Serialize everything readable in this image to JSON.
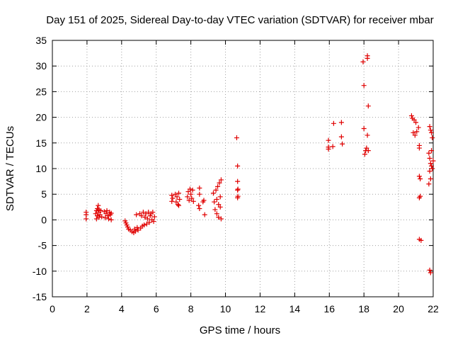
{
  "chart_data": {
    "type": "scatter",
    "title": "Day 151 of 2025, Sidereal Day-to-day VTEC variation (SDTVAR) for receiver mbar",
    "xlabel": "GPS time / hours",
    "ylabel": "SDTVAR / TECUs",
    "xlim": [
      0,
      22
    ],
    "ylim": [
      -15,
      35
    ],
    "xticks": [
      0,
      2,
      4,
      6,
      8,
      10,
      12,
      14,
      16,
      18,
      20,
      22
    ],
    "yticks": [
      -15,
      -10,
      -5,
      0,
      5,
      10,
      15,
      20,
      25,
      30,
      35
    ],
    "grid": true,
    "legend": "none",
    "marker": "+",
    "series": [
      {
        "name": "SDTVAR",
        "color": "#e00000",
        "points": [
          [
            1.95,
            1.5
          ],
          [
            1.95,
            1.0
          ],
          [
            1.95,
            0.2
          ],
          [
            2.5,
            1.2
          ],
          [
            2.55,
            1.8
          ],
          [
            2.55,
            0.2
          ],
          [
            2.6,
            2.2
          ],
          [
            2.6,
            0.8
          ],
          [
            2.65,
            1.5
          ],
          [
            2.65,
            2.8
          ],
          [
            2.7,
            0.5
          ],
          [
            2.7,
            2.0
          ],
          [
            2.75,
            1.0
          ],
          [
            2.8,
            1.8
          ],
          [
            2.85,
            0.6
          ],
          [
            3.0,
            1.6
          ],
          [
            3.05,
            0.4
          ],
          [
            3.1,
            1.2
          ],
          [
            3.15,
            1.8
          ],
          [
            3.2,
            0.8
          ],
          [
            3.25,
            0.2
          ],
          [
            3.3,
            1.5
          ],
          [
            3.35,
            1.0
          ],
          [
            3.4,
            0.0
          ],
          [
            3.4,
            1.3
          ],
          [
            4.2,
            -0.2
          ],
          [
            4.25,
            -0.6
          ],
          [
            4.3,
            -1.0
          ],
          [
            4.35,
            -1.4
          ],
          [
            4.4,
            -1.8
          ],
          [
            4.5,
            -2.0
          ],
          [
            4.6,
            -2.3
          ],
          [
            4.7,
            -2.5
          ],
          [
            4.75,
            -1.8
          ],
          [
            4.8,
            -2.2
          ],
          [
            4.85,
            1.0
          ],
          [
            4.9,
            -1.5
          ],
          [
            4.95,
            -2.0
          ],
          [
            5.05,
            1.2
          ],
          [
            5.1,
            -1.6
          ],
          [
            5.15,
            0.8
          ],
          [
            5.2,
            -1.2
          ],
          [
            5.25,
            1.5
          ],
          [
            5.3,
            -1.0
          ],
          [
            5.35,
            0.5
          ],
          [
            5.4,
            1.2
          ],
          [
            5.45,
            -0.8
          ],
          [
            5.5,
            0.2
          ],
          [
            5.55,
            1.5
          ],
          [
            5.6,
            -0.5
          ],
          [
            5.65,
            0.8
          ],
          [
            5.7,
            1.2
          ],
          [
            5.75,
            0.0
          ],
          [
            5.8,
            1.5
          ],
          [
            5.85,
            -0.3
          ],
          [
            5.9,
            0.6
          ],
          [
            6.9,
            4.8
          ],
          [
            6.9,
            3.6
          ],
          [
            6.95,
            4.2
          ],
          [
            7.1,
            5.0
          ],
          [
            7.15,
            3.5
          ],
          [
            7.2,
            4.5
          ],
          [
            7.25,
            3.0
          ],
          [
            7.3,
            5.2
          ],
          [
            7.3,
            2.8
          ],
          [
            7.35,
            4.0
          ],
          [
            7.8,
            4.5
          ],
          [
            7.85,
            5.5
          ],
          [
            7.9,
            3.8
          ],
          [
            7.95,
            6.0
          ],
          [
            8.0,
            5.0
          ],
          [
            8.05,
            4.2
          ],
          [
            8.1,
            5.8
          ],
          [
            8.15,
            3.6
          ],
          [
            8.5,
            6.2
          ],
          [
            8.5,
            5.0
          ],
          [
            8.45,
            2.8
          ],
          [
            8.5,
            2.2
          ],
          [
            8.7,
            3.5
          ],
          [
            8.75,
            3.8
          ],
          [
            8.8,
            1.0
          ],
          [
            9.3,
            5.2
          ],
          [
            9.35,
            3.5
          ],
          [
            9.4,
            2.0
          ],
          [
            9.45,
            5.8
          ],
          [
            9.5,
            4.0
          ],
          [
            9.5,
            1.2
          ],
          [
            9.55,
            6.5
          ],
          [
            9.6,
            3.0
          ],
          [
            9.6,
            0.5
          ],
          [
            9.65,
            7.2
          ],
          [
            9.7,
            4.5
          ],
          [
            9.7,
            2.5
          ],
          [
            9.75,
            7.8
          ],
          [
            9.75,
            0.2
          ],
          [
            10.65,
            16.0
          ],
          [
            10.7,
            10.5
          ],
          [
            10.7,
            7.5
          ],
          [
            10.72,
            6.0
          ],
          [
            10.7,
            5.8
          ],
          [
            10.72,
            4.6
          ],
          [
            10.7,
            4.3
          ],
          [
            15.95,
            15.5
          ],
          [
            15.95,
            14.2
          ],
          [
            15.95,
            13.8
          ],
          [
            16.2,
            14.3
          ],
          [
            16.25,
            18.8
          ],
          [
            16.7,
            19.0
          ],
          [
            16.7,
            16.2
          ],
          [
            16.75,
            14.8
          ],
          [
            17.95,
            30.8
          ],
          [
            18.0,
            26.2
          ],
          [
            18.0,
            17.8
          ],
          [
            18.05,
            12.8
          ],
          [
            18.1,
            13.5
          ],
          [
            18.15,
            14.0
          ],
          [
            18.2,
            32.0
          ],
          [
            18.25,
            22.2
          ],
          [
            18.2,
            16.5
          ],
          [
            18.25,
            13.5
          ],
          [
            18.2,
            31.5
          ],
          [
            20.75,
            20.3
          ],
          [
            20.8,
            19.8
          ],
          [
            20.85,
            17.0
          ],
          [
            20.9,
            19.5
          ],
          [
            20.95,
            16.5
          ],
          [
            21.0,
            19.0
          ],
          [
            21.05,
            17.2
          ],
          [
            21.15,
            18.0
          ],
          [
            21.2,
            14.5
          ],
          [
            21.2,
            14.0
          ],
          [
            21.2,
            8.5
          ],
          [
            21.25,
            8.0
          ],
          [
            21.25,
            4.6
          ],
          [
            21.2,
            4.3
          ],
          [
            21.2,
            -3.8
          ],
          [
            21.3,
            -4.0
          ],
          [
            21.8,
            18.2
          ],
          [
            21.85,
            17.5
          ],
          [
            21.9,
            17.0
          ],
          [
            21.95,
            16.0
          ],
          [
            21.75,
            13.0
          ],
          [
            21.8,
            12.0
          ],
          [
            21.85,
            11.0
          ],
          [
            21.9,
            10.5
          ],
          [
            21.95,
            10.0
          ],
          [
            22.0,
            11.5
          ],
          [
            21.8,
            9.5
          ],
          [
            21.85,
            8.0
          ],
          [
            21.75,
            7.0
          ],
          [
            21.9,
            13.5
          ],
          [
            21.8,
            -9.8
          ],
          [
            21.85,
            -10.3
          ]
        ]
      }
    ]
  }
}
